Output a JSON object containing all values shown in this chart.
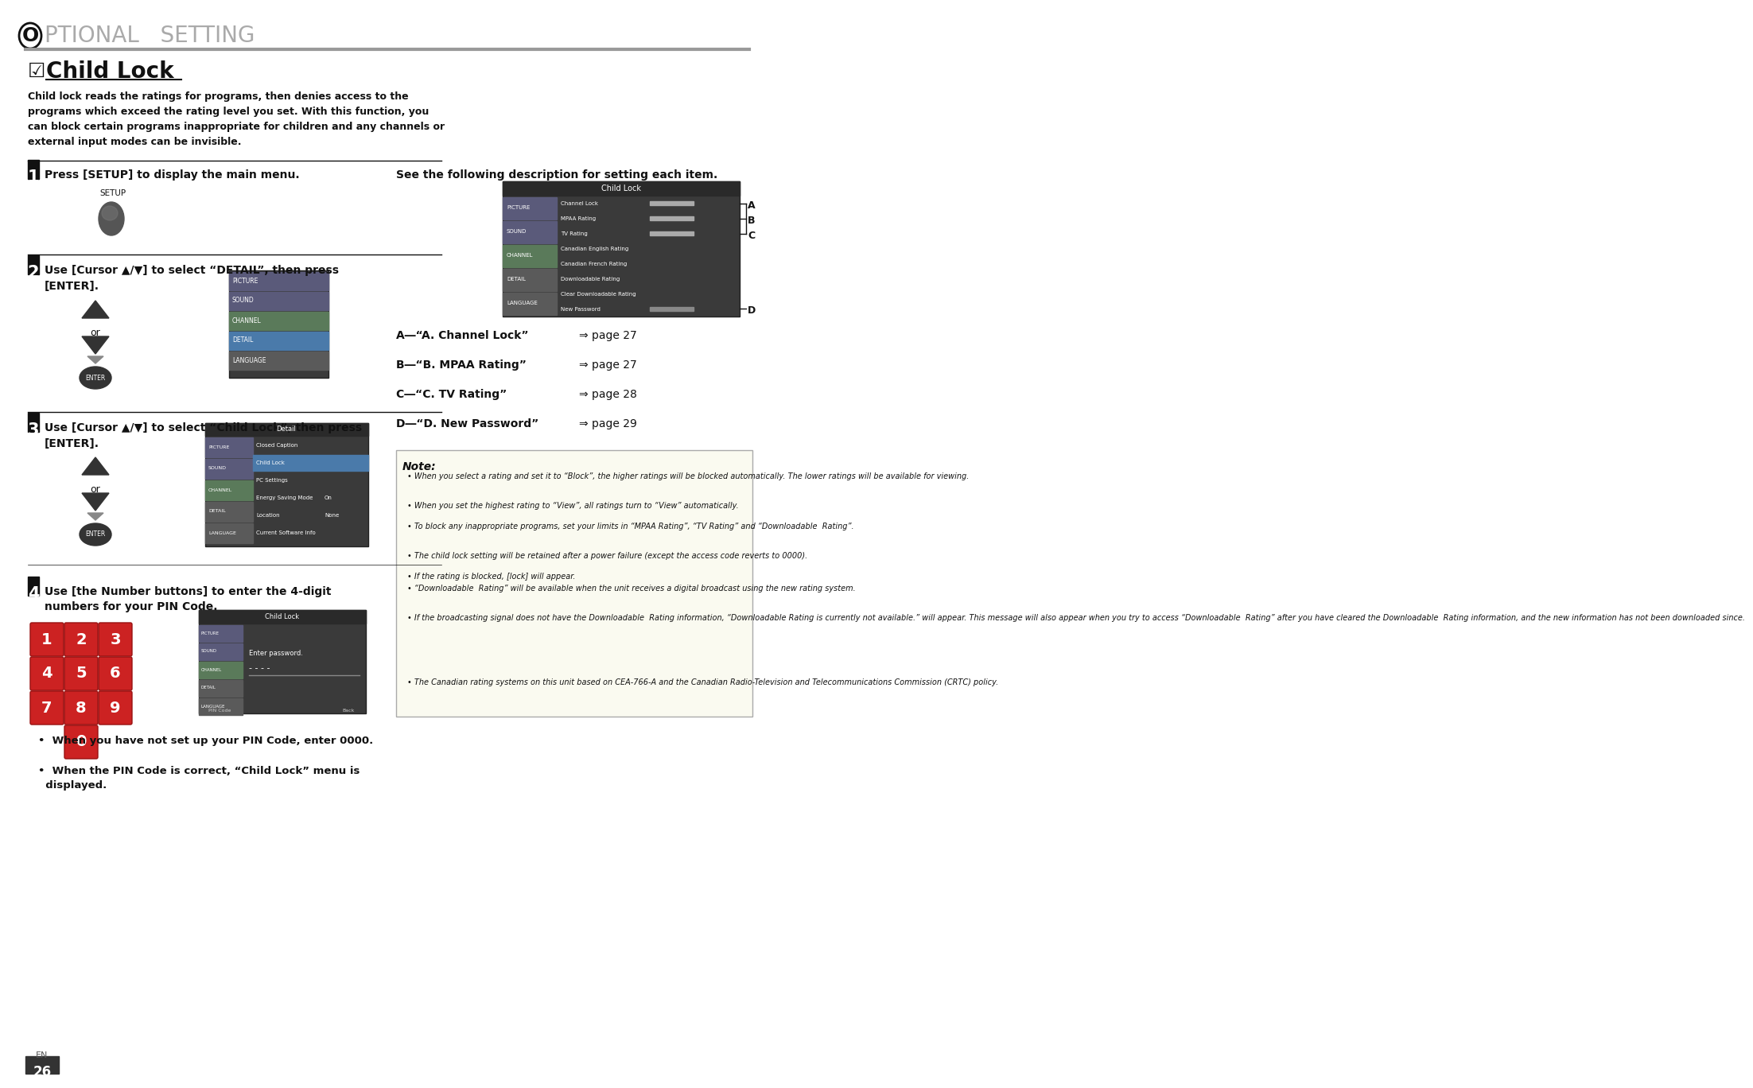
{
  "page_bg": "#ffffff",
  "header_text": "PTIONAL   SETTING",
  "header_O": "O",
  "header_line_color": "#999999",
  "section_title": "Child Lock",
  "section_title_checkbox": "☑",
  "intro_text": "Child lock reads the ratings for programs, then denies access to the\nprograms which exceed the rating level you set. With this function, you\ncan block certain programs inappropriate for children and any channels or\nexternal input modes can be invisible.",
  "step1_num": "1",
  "step1_text": "Press [SETUP] to display the main menu.",
  "step2_num": "2",
  "step2_text": "Use [Cursor ▲/▼] to select “DETAIL”, then press\n[ENTER].",
  "step3_num": "3",
  "step3_text": "Use [Cursor ▲/▼] to select “Child Lock”, then press\n[ENTER].",
  "step4_num": "4",
  "step4_text": "Use [the Number buttons] to enter the 4-digit\nnumbers for your PIN Code.",
  "right_desc": "See the following description for setting each item.",
  "ref_A_bold": "A―“A. Channel Lock”",
  "ref_A_page": "⇒ page 27",
  "ref_B_bold": "B―“B. MPAA Rating”",
  "ref_B_page": "⇒ page 27",
  "ref_C_bold": "C―“C. TV Rating”",
  "ref_C_page": "⇒ page 28",
  "ref_D_bold": "D―“D. New Password”",
  "ref_D_page": "⇒ page 29",
  "note_title": "Note:",
  "note_items": [
    "When you select a rating and set it to “Block”, the higher ratings will be blocked automatically. The lower ratings will be available for viewing.",
    "When you set the highest rating to “View”, all ratings turn to “View” automatically.",
    "To block any inappropriate programs, set your limits in “MPAA Rating”, “TV Rating” and “Downloadable  Rating”.",
    "The child lock setting will be retained after a power failure (except the access code reverts to 0000).",
    "If the rating is blocked, [lock] will appear.",
    "“Downloadable  Rating” will be available when the unit receives a digital broadcast using the new rating system.",
    "If the broadcasting signal does not have the Downloadable  Rating information, “Downloadable Rating is currently not available.” will appear. This message will also appear when you try to access “Downloadable  Rating” after you have cleared the Downloadable  Rating information, and the new information has not been downloaded since.",
    "The Canadian rating systems on this unit based on CEA-766-A and the Canadian Radio-Television and Telecommunications Commission (CRTC) policy."
  ],
  "bullet_items_bottom": [
    "When you have not set up your PIN Code, enter 0000.",
    "When the PIN Code is correct, “Child Lock” menu is\n  displayed."
  ],
  "page_num": "26",
  "page_label": "EN"
}
